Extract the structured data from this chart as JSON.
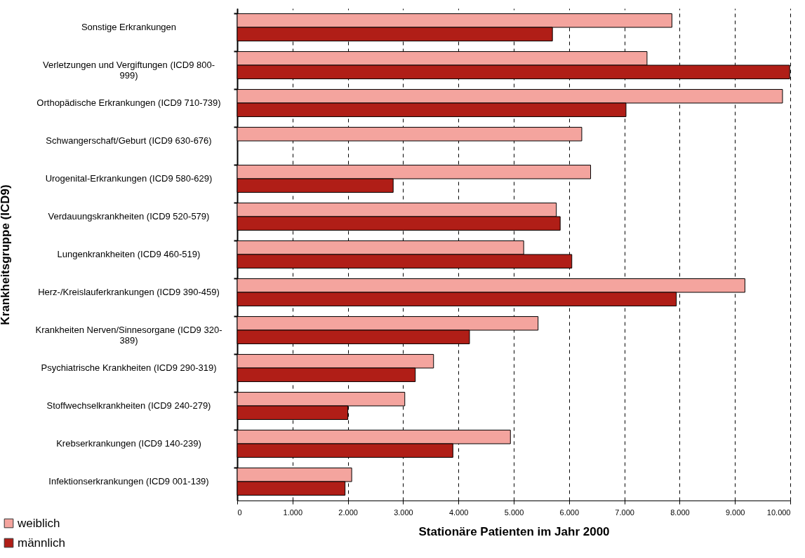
{
  "chart_data": {
    "type": "bar",
    "orientation": "horizontal",
    "xlabel": "Stationäre Patienten im Jahr 2000",
    "ylabel": "Krankheitsgruppe (ICD9)",
    "categories": [
      "Sonstige Erkrankungen",
      "Verletzungen und Vergiftungen (ICD9 800-999)",
      "Orthopädische Erkrankungen (ICD9 710-739)",
      "Schwangerschaft/Geburt (ICD9 630-676)",
      "Urogenital-Erkrankungen (ICD9 580-629)",
      "Verdauungskrankheiten (ICD9 520-579)",
      "Lungenkrankheiten (ICD9 460-519)",
      "Herz-/Kreislauferkrankungen (ICD9 390-459)",
      "Krankheiten Nerven/Sinnesorgane (ICD9 320-389)",
      "Psychiatrische Krankheiten (ICD9 290-319)",
      "Stoffwechselkrankheiten (ICD9 240-279)",
      "Krebserkrankungen (ICD9 140-239)",
      "Infektionserkrankungen (ICD9 001-139)"
    ],
    "series": [
      {
        "name": "weiblich",
        "color": "#f4a49e",
        "values": [
          7860,
          7410,
          9860,
          6230,
          6390,
          5770,
          5180,
          9180,
          5440,
          3550,
          3030,
          4940,
          2070
        ]
      },
      {
        "name": "männlich",
        "color": "#b01e17",
        "values": [
          5700,
          9990,
          7030,
          null,
          2820,
          5840,
          6050,
          7940,
          4200,
          3220,
          2000,
          3900,
          1950
        ]
      }
    ],
    "xlim": [
      0,
      10000
    ],
    "xticks": [
      0,
      {
        "value": 1000,
        "label": "1.000"
      },
      {
        "value": 2000,
        "label": "2.000"
      },
      {
        "value": 3000,
        "label": "3.000"
      },
      {
        "value": 4000,
        "label": "4.000"
      },
      {
        "value": 5000,
        "label": "5.000"
      },
      {
        "value": 6000,
        "label": "6.000"
      },
      {
        "value": 7000,
        "label": "7.000"
      },
      {
        "value": 8000,
        "label": "8.000"
      },
      {
        "value": 9000,
        "label": "9.000"
      },
      {
        "value": 10000,
        "label": "10.000"
      }
    ],
    "grid": "x",
    "legend": "bottom left"
  }
}
